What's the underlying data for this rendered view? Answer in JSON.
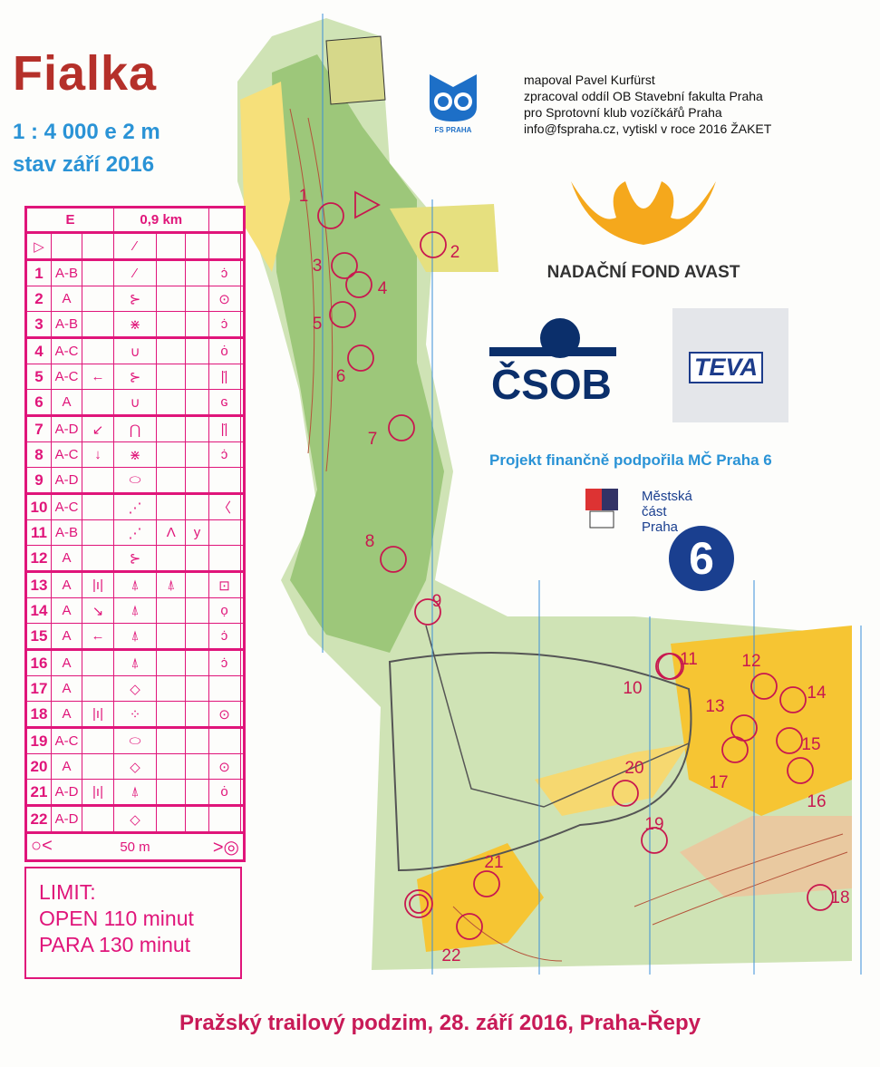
{
  "map": {
    "title": "Fialka",
    "scale": "1 : 4 000  e 2 m",
    "state": "stav září 2016",
    "footer": "Pražský trailový podzim, 28. září 2016, Praha-Řepy",
    "colors": {
      "control": "#c8184f",
      "description": "#e0157a",
      "title": "#b5302a",
      "blue_text": "#2a93d6",
      "open_land": "#f6c533",
      "forest_green": "#9dc77a",
      "contours": "#b5533a"
    }
  },
  "credits": [
    "mapoval Pavel Kurfürst",
    "zpracoval oddíl OB Stavební fakulta Praha",
    "pro Sprotovní klub vozíčkářů Praha",
    "info@fspraha.cz, vytiskl v roce 2016 ŽAKET"
  ],
  "logos": {
    "fs": "FS PRAHA",
    "avast": "NADAČNÍ FOND AVAST",
    "csob": "ČSOB",
    "teva": "TEVA",
    "praha6_text": [
      "Městská",
      "část",
      "Praha"
    ],
    "praha6_number": "6"
  },
  "project": "Projekt finančně podpořila MČ Praha 6",
  "description": {
    "class": "E",
    "length": "0,9 km",
    "start_symbol": "▷",
    "start_feature": "⁄",
    "rows": [
      [
        "1",
        "A-B",
        "",
        "⁄",
        "",
        "",
        "ɔ̇"
      ],
      [
        "2",
        "A",
        "",
        "⊱",
        "",
        "",
        "⊙"
      ],
      [
        "3",
        "A-B",
        "",
        "⋇",
        "",
        "",
        "ɔ̇"
      ],
      [
        "4",
        "A-C",
        "",
        "∪",
        "",
        "",
        "ȯ"
      ],
      [
        "5",
        "A-C",
        "←",
        "⊱",
        "",
        "",
        "|̇|"
      ],
      [
        "6",
        "A",
        "",
        "∪",
        "",
        "",
        "ɢ"
      ],
      [
        "7",
        "A-D",
        "↙",
        "⋂",
        "",
        "",
        "|̇|"
      ],
      [
        "8",
        "A-C",
        "↓",
        "⋇",
        "",
        "",
        "ɔ̇"
      ],
      [
        "9",
        "A-D",
        "",
        "⬭",
        "",
        "",
        ""
      ],
      [
        "10",
        "A-C",
        "",
        "⋰",
        "",
        "",
        "〈"
      ],
      [
        "11",
        "A-B",
        "",
        "⋰",
        "Λ",
        "y",
        ""
      ],
      [
        "12",
        "A",
        "",
        "⊱",
        "",
        "",
        ""
      ],
      [
        "13",
        "A",
        "|ı|",
        "⍋",
        "⍋",
        "",
        "⊡"
      ],
      [
        "14",
        "A",
        "↘",
        "⍋",
        "",
        "",
        "ọ"
      ],
      [
        "15",
        "A",
        "←",
        "⍋",
        "",
        "",
        "ɔ̇"
      ],
      [
        "16",
        "A",
        "",
        "⍋",
        "",
        "",
        "ɔ̇"
      ],
      [
        "17",
        "A",
        "",
        "◇",
        "",
        "",
        ""
      ],
      [
        "18",
        "A",
        "|ı|",
        "⁘",
        "",
        "",
        "⊙"
      ],
      [
        "19",
        "A-C",
        "",
        "⬭",
        "",
        "",
        ""
      ],
      [
        "20",
        "A",
        "",
        "◇",
        "",
        "",
        "⊙"
      ],
      [
        "21",
        "A-D",
        "|ı|",
        "⍋",
        "",
        "",
        "ȯ"
      ],
      [
        "22",
        "A-D",
        "",
        "◇",
        "",
        "",
        ""
      ]
    ],
    "finish": "50 m"
  },
  "limit": {
    "title": "LIMIT:",
    "open": "OPEN 110 minut",
    "para": "PARA  130 minut"
  },
  "controls": [
    "1",
    "2",
    "3",
    "4",
    "5",
    "6",
    "7",
    "8",
    "9",
    "10",
    "11",
    "12",
    "13",
    "14",
    "15",
    "16",
    "17",
    "18",
    "19",
    "20",
    "21",
    "22"
  ]
}
